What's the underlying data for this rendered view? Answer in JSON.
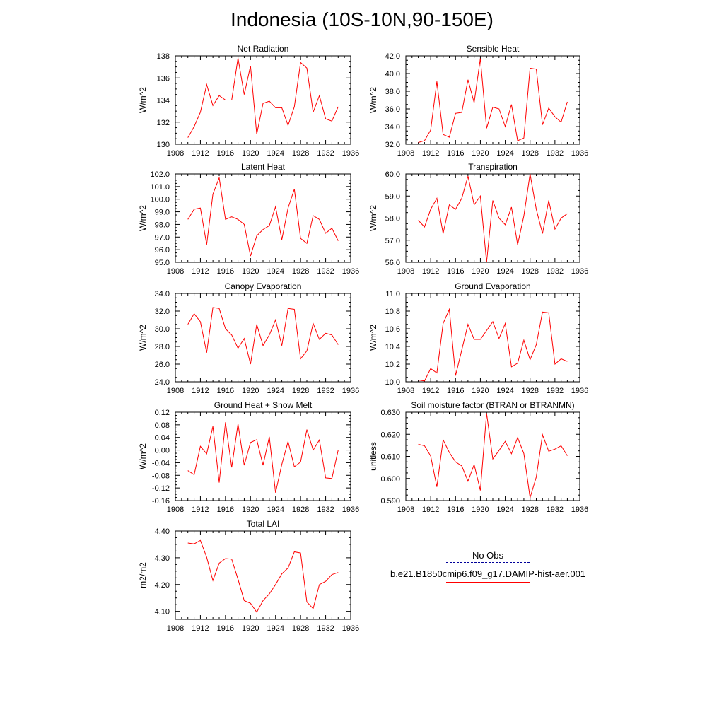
{
  "page_title": "Indonesia (10S-10N,90-150E)",
  "colors": {
    "model_line": "#ff0000",
    "obs_line": "#000099",
    "axis": "#000000"
  },
  "legend": {
    "obs_label": "No Obs",
    "model_label": "b.e21.B1850cmip6.f09_g17.DAMIP-hist-aer.001"
  },
  "chart_data": [
    {
      "type": "line",
      "title": "Net Radiation",
      "ylabel": "W/m^2",
      "xlim": [
        1908,
        1936
      ],
      "ylim": [
        130,
        138
      ],
      "xticks": [
        1908,
        1912,
        1916,
        1920,
        1924,
        1928,
        1932,
        1936
      ],
      "xtick_labels": [
        "1908",
        "1912",
        "1916",
        "1920",
        "1924",
        "1928",
        "1932",
        "1936"
      ],
      "yticks": [
        130,
        132,
        134,
        136,
        138
      ],
      "ytick_labels": [
        "130",
        "132",
        "134",
        "136",
        "138"
      ],
      "x": [
        1910,
        1911,
        1912,
        1913,
        1914,
        1915,
        1916,
        1917,
        1918,
        1919,
        1920,
        1921,
        1922,
        1923,
        1924,
        1925,
        1926,
        1927,
        1928,
        1929,
        1930,
        1931,
        1932,
        1933,
        1934
      ],
      "series": [
        {
          "values": [
            130.6,
            131.6,
            132.9,
            135.4,
            133.5,
            134.4,
            134.0,
            134.0,
            137.8,
            134.5,
            137.1,
            130.9,
            133.7,
            133.9,
            133.3,
            133.3,
            131.7,
            133.4,
            137.4,
            136.9,
            132.9,
            134.4,
            132.3,
            132.1,
            133.4
          ]
        }
      ]
    },
    {
      "type": "line",
      "title": "Sensible Heat",
      "ylabel": "W/m^2",
      "xlim": [
        1908,
        1936
      ],
      "ylim": [
        32,
        42
      ],
      "xticks": [
        1908,
        1912,
        1916,
        1920,
        1924,
        1928,
        1932,
        1936
      ],
      "xtick_labels": [
        "1908",
        "1912",
        "1916",
        "1920",
        "1924",
        "1928",
        "1932",
        "1936"
      ],
      "yticks": [
        32,
        34,
        36,
        38,
        40,
        42
      ],
      "ytick_labels": [
        "32.0",
        "34.0",
        "36.0",
        "38.0",
        "40.0",
        "42.0"
      ],
      "x": [
        1910,
        1911,
        1912,
        1913,
        1914,
        1915,
        1916,
        1917,
        1918,
        1919,
        1920,
        1921,
        1922,
        1923,
        1924,
        1925,
        1926,
        1927,
        1928,
        1929,
        1930,
        1931,
        1932,
        1933,
        1934
      ],
      "series": [
        {
          "values": [
            32.2,
            32.4,
            33.6,
            39.1,
            33.1,
            32.8,
            35.5,
            35.6,
            39.3,
            36.7,
            41.7,
            33.8,
            36.2,
            36.0,
            34.0,
            36.5,
            32.4,
            32.7,
            40.6,
            40.5,
            34.2,
            36.1,
            35.1,
            34.5,
            36.8
          ]
        }
      ]
    },
    {
      "type": "line",
      "title": "Latent Heat",
      "ylabel": "W/m^2",
      "xlim": [
        1908,
        1936
      ],
      "ylim": [
        95,
        102
      ],
      "xticks": [
        1908,
        1912,
        1916,
        1920,
        1924,
        1928,
        1932,
        1936
      ],
      "xtick_labels": [
        "1908",
        "1912",
        "1916",
        "1920",
        "1924",
        "1928",
        "1932",
        "1936"
      ],
      "yticks": [
        95,
        96,
        97,
        98,
        99,
        100,
        101,
        102
      ],
      "ytick_labels": [
        "95.0",
        "96.0",
        "97.0",
        "98.0",
        "99.0",
        "100.0",
        "101.0",
        "102.0"
      ],
      "x": [
        1910,
        1911,
        1912,
        1913,
        1914,
        1915,
        1916,
        1917,
        1918,
        1919,
        1920,
        1921,
        1922,
        1923,
        1924,
        1925,
        1926,
        1927,
        1928,
        1929,
        1930,
        1931,
        1932,
        1933,
        1934
      ],
      "series": [
        {
          "values": [
            98.4,
            99.2,
            99.3,
            96.4,
            100.4,
            101.7,
            98.4,
            98.6,
            98.4,
            98.0,
            95.5,
            97.1,
            97.6,
            97.9,
            99.4,
            96.8,
            99.3,
            100.8,
            96.9,
            96.5,
            98.7,
            98.4,
            97.3,
            97.7,
            96.7
          ]
        }
      ]
    },
    {
      "type": "line",
      "title": "Transpiration",
      "ylabel": "W/m^2",
      "xlim": [
        1908,
        1936
      ],
      "ylim": [
        56,
        60
      ],
      "xticks": [
        1908,
        1912,
        1916,
        1920,
        1924,
        1928,
        1932,
        1936
      ],
      "xtick_labels": [
        "1908",
        "1912",
        "1916",
        "1920",
        "1924",
        "1928",
        "1932",
        "1936"
      ],
      "yticks": [
        56,
        57,
        58,
        59,
        60
      ],
      "ytick_labels": [
        "56.0",
        "57.0",
        "58.0",
        "59.0",
        "60.0"
      ],
      "x": [
        1910,
        1911,
        1912,
        1913,
        1914,
        1915,
        1916,
        1917,
        1918,
        1919,
        1920,
        1921,
        1922,
        1923,
        1924,
        1925,
        1926,
        1927,
        1928,
        1929,
        1930,
        1931,
        1932,
        1933,
        1934
      ],
      "series": [
        {
          "values": [
            57.9,
            57.6,
            58.4,
            58.9,
            57.3,
            58.6,
            58.4,
            58.9,
            59.9,
            58.6,
            59.0,
            56.0,
            58.8,
            58.0,
            57.7,
            58.5,
            56.8,
            58.1,
            60.0,
            58.4,
            57.3,
            58.8,
            57.5,
            58.0,
            58.2
          ]
        }
      ]
    },
    {
      "type": "line",
      "title": "Canopy Evaporation",
      "ylabel": "W/m^2",
      "xlim": [
        1908,
        1936
      ],
      "ylim": [
        24,
        34
      ],
      "xticks": [
        1908,
        1912,
        1916,
        1920,
        1924,
        1928,
        1932,
        1936
      ],
      "xtick_labels": [
        "1908",
        "1912",
        "1916",
        "1920",
        "1924",
        "1928",
        "1932",
        "1936"
      ],
      "yticks": [
        24,
        26,
        28,
        30,
        32,
        34
      ],
      "ytick_labels": [
        "24.0",
        "26.0",
        "28.0",
        "30.0",
        "32.0",
        "34.0"
      ],
      "x": [
        1910,
        1911,
        1912,
        1913,
        1914,
        1915,
        1916,
        1917,
        1918,
        1919,
        1920,
        1921,
        1922,
        1923,
        1924,
        1925,
        1926,
        1927,
        1928,
        1929,
        1930,
        1931,
        1932,
        1933,
        1934
      ],
      "series": [
        {
          "values": [
            30.5,
            31.7,
            30.8,
            27.3,
            32.4,
            32.3,
            30.0,
            29.3,
            27.8,
            28.9,
            26.0,
            30.5,
            28.1,
            29.3,
            31.0,
            28.1,
            32.3,
            32.2,
            26.6,
            27.5,
            30.6,
            28.8,
            29.5,
            29.3,
            28.2
          ]
        }
      ]
    },
    {
      "type": "line",
      "title": "Ground Evaporation",
      "ylabel": "W/m^2",
      "xlim": [
        1908,
        1936
      ],
      "ylim": [
        10,
        11
      ],
      "xticks": [
        1908,
        1912,
        1916,
        1920,
        1924,
        1928,
        1932,
        1936
      ],
      "xtick_labels": [
        "1908",
        "1912",
        "1916",
        "1920",
        "1924",
        "1928",
        "1932",
        "1936"
      ],
      "yticks": [
        10.0,
        10.2,
        10.4,
        10.6,
        10.8,
        11.0
      ],
      "ytick_labels": [
        "10.0",
        "10.2",
        "10.4",
        "10.6",
        "10.8",
        "11.0"
      ],
      "x": [
        1910,
        1911,
        1912,
        1913,
        1914,
        1915,
        1916,
        1917,
        1918,
        1919,
        1920,
        1921,
        1922,
        1923,
        1924,
        1925,
        1926,
        1927,
        1928,
        1929,
        1930,
        1931,
        1932,
        1933,
        1934
      ],
      "series": [
        {
          "values": [
            10.02,
            10.01,
            10.15,
            10.1,
            10.66,
            10.82,
            10.07,
            10.36,
            10.65,
            10.48,
            10.48,
            10.58,
            10.68,
            10.49,
            10.66,
            10.17,
            10.21,
            10.47,
            10.25,
            10.42,
            10.79,
            10.78,
            10.2,
            10.26,
            10.23
          ]
        }
      ]
    },
    {
      "type": "line",
      "title": "Ground Heat + Snow Melt",
      "ylabel": "W/m^2",
      "xlim": [
        1908,
        1936
      ],
      "ylim": [
        -0.16,
        0.12
      ],
      "xticks": [
        1908,
        1912,
        1916,
        1920,
        1924,
        1928,
        1932,
        1936
      ],
      "xtick_labels": [
        "1908",
        "1912",
        "1916",
        "1920",
        "1924",
        "1928",
        "1932",
        "1936"
      ],
      "yticks": [
        -0.16,
        -0.12,
        -0.08,
        -0.04,
        0.0,
        0.04,
        0.08,
        0.12
      ],
      "ytick_labels": [
        "-0.16",
        "-0.12",
        "-0.08",
        "-0.04",
        "0.00",
        "0.04",
        "0.08",
        "0.12"
      ],
      "x": [
        1910,
        1911,
        1912,
        1913,
        1914,
        1915,
        1916,
        1917,
        1918,
        1919,
        1920,
        1921,
        1922,
        1923,
        1924,
        1925,
        1926,
        1927,
        1928,
        1929,
        1930,
        1931,
        1932,
        1933,
        1934
      ],
      "series": [
        {
          "values": [
            -0.065,
            -0.078,
            0.012,
            -0.012,
            0.075,
            -0.103,
            0.088,
            -0.055,
            0.083,
            -0.048,
            0.024,
            0.033,
            -0.048,
            0.042,
            -0.135,
            -0.045,
            0.027,
            -0.053,
            -0.038,
            0.065,
            0.0,
            0.032,
            -0.088,
            -0.09,
            0.0
          ]
        }
      ]
    },
    {
      "type": "line",
      "title": "Soil moisture factor (BTRAN or BTRANMN)",
      "ylabel": "unitless",
      "xlim": [
        1908,
        1936
      ],
      "ylim": [
        0.59,
        0.63
      ],
      "xticks": [
        1908,
        1912,
        1916,
        1920,
        1924,
        1928,
        1932,
        1936
      ],
      "xtick_labels": [
        "1908",
        "1912",
        "1916",
        "1920",
        "1924",
        "1928",
        "1932",
        "1936"
      ],
      "yticks": [
        0.59,
        0.6,
        0.61,
        0.62,
        0.63
      ],
      "ytick_labels": [
        "0.590",
        "0.600",
        "0.610",
        "0.620",
        "0.630"
      ],
      "x": [
        1910,
        1911,
        1912,
        1913,
        1914,
        1915,
        1916,
        1917,
        1918,
        1919,
        1920,
        1921,
        1922,
        1923,
        1924,
        1925,
        1926,
        1927,
        1928,
        1929,
        1930,
        1931,
        1932,
        1933,
        1934
      ],
      "series": [
        {
          "values": [
            0.6155,
            0.6148,
            0.6102,
            0.5962,
            0.6175,
            0.6118,
            0.6075,
            0.6057,
            0.5988,
            0.6063,
            0.5946,
            0.6295,
            0.6088,
            0.6127,
            0.6168,
            0.6112,
            0.6185,
            0.6113,
            0.5913,
            0.6007,
            0.6198,
            0.6123,
            0.6133,
            0.6148,
            0.6103
          ]
        }
      ]
    },
    {
      "type": "line",
      "title": "Total LAI",
      "ylabel": "m2/m2",
      "xlim": [
        1908,
        1936
      ],
      "ylim": [
        4.07,
        4.4
      ],
      "xticks": [
        1908,
        1912,
        1916,
        1920,
        1924,
        1928,
        1932,
        1936
      ],
      "xtick_labels": [
        "1908",
        "1912",
        "1916",
        "1920",
        "1924",
        "1928",
        "1932",
        "1936"
      ],
      "yticks": [
        4.1,
        4.2,
        4.3,
        4.4
      ],
      "ytick_labels": [
        "4.10",
        "4.20",
        "4.30",
        "4.40"
      ],
      "x": [
        1910,
        1911,
        1912,
        1913,
        1914,
        1915,
        1916,
        1917,
        1918,
        1919,
        1920,
        1921,
        1922,
        1923,
        1924,
        1925,
        1926,
        1927,
        1928,
        1929,
        1930,
        1931,
        1932,
        1933,
        1934
      ],
      "series": [
        {
          "values": [
            4.355,
            4.352,
            4.365,
            4.302,
            4.215,
            4.28,
            4.297,
            4.295,
            4.22,
            4.14,
            4.13,
            4.097,
            4.14,
            4.165,
            4.2,
            4.24,
            4.262,
            4.322,
            4.318,
            4.135,
            4.11,
            4.2,
            4.212,
            4.237,
            4.245
          ]
        }
      ]
    }
  ]
}
